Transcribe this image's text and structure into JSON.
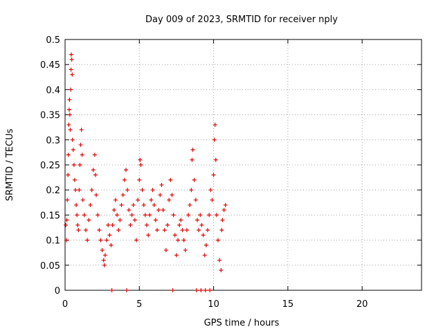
{
  "chart_data": {
    "type": "scatter",
    "title": "Day 009 of 2023, SRMTID for receiver nply",
    "xlabel": "GPS time / hours",
    "ylabel": "SRMTID / TECUs",
    "xlim": [
      0,
      24
    ],
    "ylim": [
      0,
      0.5
    ],
    "xticks": [
      0,
      5,
      10,
      15,
      20
    ],
    "yticks": [
      0,
      0.05,
      0.1,
      0.15,
      0.2,
      0.25,
      0.3,
      0.35,
      0.4,
      0.45,
      0.5
    ],
    "xtick_labels": [
      "0",
      "5",
      "10",
      "15",
      "20"
    ],
    "ytick_labels": [
      "0",
      "0.05",
      "0.1",
      "0.15",
      "0.2",
      "0.25",
      "0.3",
      "0.35",
      "0.4",
      "0.45",
      "0.5"
    ],
    "grid": true,
    "marker": "+",
    "color": "#e00000",
    "series": [
      {
        "points": [
          [
            0.05,
            0.13
          ],
          [
            0.1,
            0.1
          ],
          [
            0.12,
            0.14
          ],
          [
            0.15,
            0.18
          ],
          [
            0.2,
            0.23
          ],
          [
            0.22,
            0.27
          ],
          [
            0.25,
            0.33
          ],
          [
            0.28,
            0.36
          ],
          [
            0.3,
            0.38
          ],
          [
            0.32,
            0.35
          ],
          [
            0.35,
            0.32
          ],
          [
            0.38,
            0.4
          ],
          [
            0.4,
            0.44
          ],
          [
            0.42,
            0.47
          ],
          [
            0.45,
            0.46
          ],
          [
            0.48,
            0.43
          ],
          [
            0.5,
            0.3
          ],
          [
            0.55,
            0.28
          ],
          [
            0.6,
            0.25
          ],
          [
            0.65,
            0.22
          ],
          [
            0.7,
            0.2
          ],
          [
            0.75,
            0.17
          ],
          [
            0.8,
            0.15
          ],
          [
            0.85,
            0.13
          ],
          [
            0.9,
            0.12
          ],
          [
            0.95,
            0.2
          ],
          [
            1.0,
            0.25
          ],
          [
            1.05,
            0.29
          ],
          [
            1.1,
            0.32
          ],
          [
            1.15,
            0.27
          ],
          [
            1.2,
            0.18
          ],
          [
            1.3,
            0.15
          ],
          [
            1.4,
            0.12
          ],
          [
            1.5,
            0.1
          ],
          [
            1.6,
            0.14
          ],
          [
            1.7,
            0.17
          ],
          [
            1.8,
            0.2
          ],
          [
            1.9,
            0.24
          ],
          [
            2.0,
            0.27
          ],
          [
            2.05,
            0.23
          ],
          [
            2.1,
            0.19
          ],
          [
            2.2,
            0.15
          ],
          [
            2.3,
            0.12
          ],
          [
            2.4,
            0.1
          ],
          [
            2.5,
            0.08
          ],
          [
            2.6,
            0.06
          ],
          [
            2.65,
            0.05
          ],
          [
            2.7,
            0.07
          ],
          [
            2.8,
            0.1
          ],
          [
            2.9,
            0.13
          ],
          [
            3.0,
            0.11
          ],
          [
            3.1,
            0.09
          ],
          [
            3.2,
            0.13
          ],
          [
            3.3,
            0.16
          ],
          [
            3.4,
            0.18
          ],
          [
            3.5,
            0.15
          ],
          [
            3.6,
            0.12
          ],
          [
            3.7,
            0.14
          ],
          [
            3.8,
            0.17
          ],
          [
            3.9,
            0.19
          ],
          [
            4.0,
            0.22
          ],
          [
            4.1,
            0.24
          ],
          [
            4.2,
            0.2
          ],
          [
            4.3,
            0.16
          ],
          [
            4.4,
            0.13
          ],
          [
            4.5,
            0.15
          ],
          [
            4.6,
            0.17
          ],
          [
            4.7,
            0.14
          ],
          [
            4.8,
            0.1
          ],
          [
            4.9,
            0.18
          ],
          [
            5.0,
            0.22
          ],
          [
            5.05,
            0.26
          ],
          [
            5.1,
            0.25
          ],
          [
            5.2,
            0.2
          ],
          [
            5.3,
            0.17
          ],
          [
            5.4,
            0.15
          ],
          [
            5.5,
            0.13
          ],
          [
            5.6,
            0.11
          ],
          [
            5.7,
            0.15
          ],
          [
            5.8,
            0.18
          ],
          [
            5.9,
            0.2
          ],
          [
            6.0,
            0.17
          ],
          [
            6.1,
            0.14
          ],
          [
            6.2,
            0.12
          ],
          [
            6.3,
            0.16
          ],
          [
            6.4,
            0.19
          ],
          [
            6.5,
            0.21
          ],
          [
            6.6,
            0.16
          ],
          [
            6.7,
            0.12
          ],
          [
            6.8,
            0.08
          ],
          [
            6.9,
            0.13
          ],
          [
            7.0,
            0.18
          ],
          [
            7.1,
            0.22
          ],
          [
            7.2,
            0.19
          ],
          [
            7.3,
            0.15
          ],
          [
            7.4,
            0.11
          ],
          [
            7.5,
            0.07
          ],
          [
            7.6,
            0.1
          ],
          [
            7.7,
            0.13
          ],
          [
            7.8,
            0.14
          ],
          [
            7.9,
            0.12
          ],
          [
            8.0,
            0.1
          ],
          [
            8.1,
            0.08
          ],
          [
            8.2,
            0.12
          ],
          [
            8.3,
            0.15
          ],
          [
            8.4,
            0.17
          ],
          [
            8.5,
            0.2
          ],
          [
            8.55,
            0.26
          ],
          [
            8.6,
            0.28
          ],
          [
            8.7,
            0.22
          ],
          [
            8.8,
            0.18
          ],
          [
            8.9,
            0.14
          ],
          [
            9.0,
            0.12
          ],
          [
            9.1,
            0.15
          ],
          [
            9.2,
            0.13
          ],
          [
            9.3,
            0.11
          ],
          [
            9.4,
            0.07
          ],
          [
            9.5,
            0.09
          ],
          [
            9.6,
            0.12
          ],
          [
            9.7,
            0.15
          ],
          [
            9.8,
            0.2
          ],
          [
            9.9,
            0.18
          ],
          [
            10.0,
            0.23
          ],
          [
            10.05,
            0.3
          ],
          [
            10.1,
            0.33
          ],
          [
            10.15,
            0.26
          ],
          [
            10.2,
            0.15
          ],
          [
            10.3,
            0.1
          ],
          [
            10.4,
            0.06
          ],
          [
            10.5,
            0.04
          ],
          [
            10.55,
            0.12
          ],
          [
            10.6,
            0.14
          ],
          [
            10.7,
            0.16
          ],
          [
            10.8,
            0.17
          ]
        ]
      },
      {
        "points": [
          [
            3.15,
            0
          ],
          [
            4.15,
            0
          ],
          [
            7.25,
            0
          ],
          [
            8.85,
            0
          ],
          [
            9.15,
            0
          ],
          [
            9.45,
            0
          ],
          [
            9.75,
            0
          ]
        ]
      }
    ]
  }
}
